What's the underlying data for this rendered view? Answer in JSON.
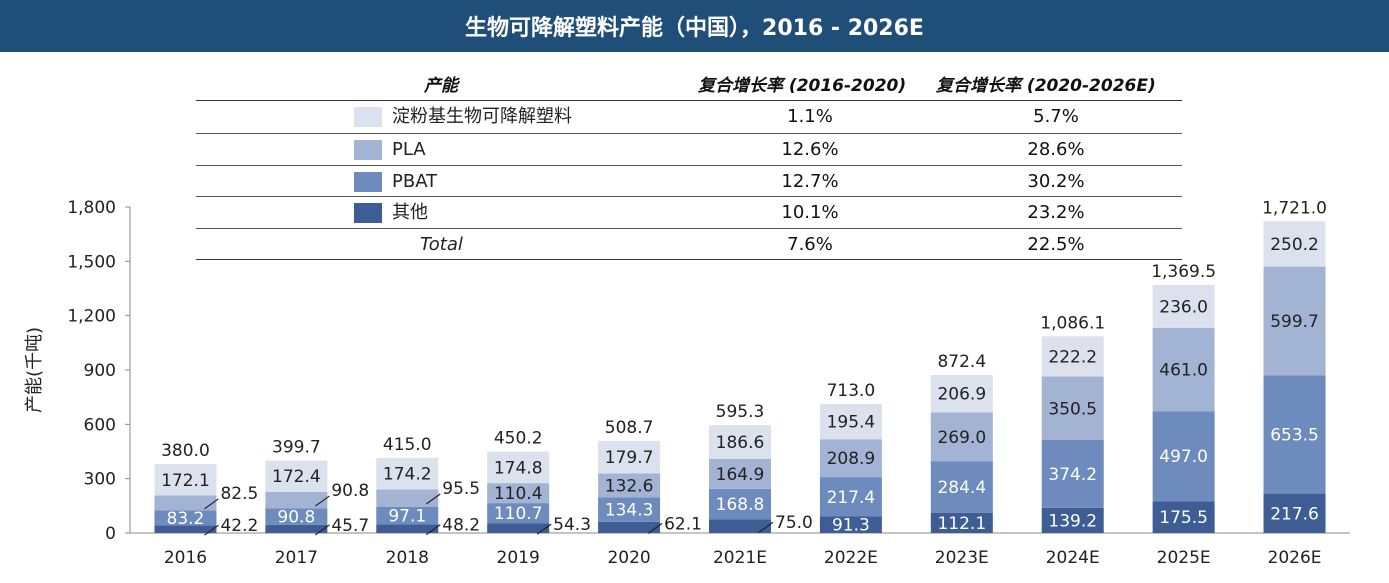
{
  "header": {
    "title": "生物可降解塑料产能（中国），2016 - 2026E"
  },
  "colors": {
    "starch": "#dbe1ed",
    "pla": "#a3b3d3",
    "pbat": "#6e8bbd",
    "other": "#3e5d95",
    "header_bg": "#1f4e79"
  },
  "legend_table": {
    "col_headers": [
      "产能",
      "复合增长率 (2016-2020)",
      "复合增长率  (2020-2026E)"
    ],
    "rows": [
      {
        "label": "淀粉基生物可降解塑料",
        "cagr_1": "1.1%",
        "cagr_2": "5.7%",
        "color": "#dbe1ed"
      },
      {
        "label": "PLA",
        "cagr_1": "12.6%",
        "cagr_2": "28.6%",
        "color": "#a3b3d3"
      },
      {
        "label": "PBAT",
        "cagr_1": "12.7%",
        "cagr_2": "30.2%",
        "color": "#6e8bbd"
      },
      {
        "label": "其他",
        "cagr_1": "10.1%",
        "cagr_2": "23.2%",
        "color": "#3e5d95"
      },
      {
        "label": "Total",
        "cagr_1": "7.6%",
        "cagr_2": "22.5%",
        "color": ""
      }
    ]
  },
  "chart_data": {
    "type": "bar",
    "stacked": true,
    "title": "生物可降解塑料产能（中国），2016 - 2026E",
    "ylabel": "产能(千吨)",
    "xlabel": "",
    "ylim": [
      0,
      1800
    ],
    "yticks": [
      "0",
      "300",
      "600",
      "900",
      "1,200",
      "1,500",
      "1,800"
    ],
    "ytick_values": [
      0,
      300,
      600,
      900,
      1200,
      1500,
      1800
    ],
    "categories": [
      "2016",
      "2017",
      "2018",
      "2019",
      "2020",
      "2021E",
      "2022E",
      "2023E",
      "2024E",
      "2025E",
      "2026E"
    ],
    "series": [
      {
        "name": "其他",
        "values": [
          42.2,
          45.7,
          48.2,
          54.3,
          62.1,
          75.0,
          91.3,
          112.1,
          139.2,
          175.5,
          217.6
        ],
        "labels": [
          "42.2",
          "45.7",
          "48.2",
          "54.3",
          "62.1",
          "75.0",
          "91.3",
          "112.1",
          "139.2",
          "175.5",
          "217.6"
        ]
      },
      {
        "name": "PBAT",
        "values": [
          83.2,
          90.8,
          97.1,
          110.7,
          134.3,
          168.8,
          217.4,
          284.4,
          374.2,
          497.0,
          653.5
        ],
        "labels": [
          "83.2",
          "90.8",
          "97.1",
          "110.7",
          "134.3",
          "168.8",
          "217.4",
          "284.4",
          "374.2",
          "497.0",
          "653.5"
        ]
      },
      {
        "name": "PLA",
        "values": [
          82.5,
          90.8,
          95.5,
          110.4,
          132.6,
          164.9,
          208.9,
          269.0,
          350.5,
          461.0,
          599.7
        ],
        "labels": [
          "82.5",
          "90.8",
          "95.5",
          "110.4",
          "132.6",
          "164.9",
          "208.9",
          "269.0",
          "350.5",
          "461.0",
          "599.7"
        ]
      },
      {
        "name": "淀粉基生物可降解塑料",
        "values": [
          172.1,
          172.4,
          174.2,
          174.8,
          179.7,
          186.6,
          195.4,
          206.9,
          222.2,
          236.0,
          250.2
        ],
        "labels": [
          "172.1",
          "172.4",
          "174.2",
          "174.8",
          "179.7",
          "186.6",
          "195.4",
          "206.9",
          "222.2",
          "236.0",
          "250.2"
        ]
      }
    ],
    "totals": [
      380.0,
      399.7,
      415.0,
      450.2,
      508.7,
      595.3,
      713.0,
      872.4,
      1086.1,
      1369.5,
      1721.0
    ],
    "total_labels": [
      "380.0",
      "399.7",
      "415.0",
      "450.2",
      "508.7",
      "595.3",
      "713.0",
      "872.4",
      "1,086.1",
      "1,369.5",
      "1,721.0"
    ],
    "grid": false,
    "legend": "top"
  }
}
